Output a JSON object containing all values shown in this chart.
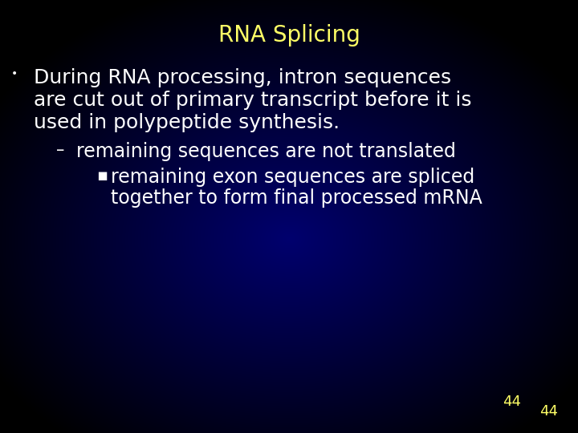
{
  "title": "RNA Splicing",
  "title_color": "#ffff66",
  "title_fontsize": 20,
  "background_color": "#000000",
  "text_color": "#ffffff",
  "bullet1_line1": "During RNA processing, intron sequences",
  "bullet1_line2": "are cut out of primary transcript before it is",
  "bullet1_line3": "used in polypeptide synthesis.",
  "bullet1_fontsize": 18,
  "sub_bullet1": "remaining sequences are not translated",
  "sub_bullet1_fontsize": 17,
  "sub_sub_bullet1_line1": "remaining exon sequences are spliced",
  "sub_sub_bullet1_line2": "together to form final processed mRNA",
  "sub_sub_bullet1_fontsize": 17,
  "page_number": "44",
  "page_number_color": "#ffff66",
  "page_number_fontsize": 13
}
